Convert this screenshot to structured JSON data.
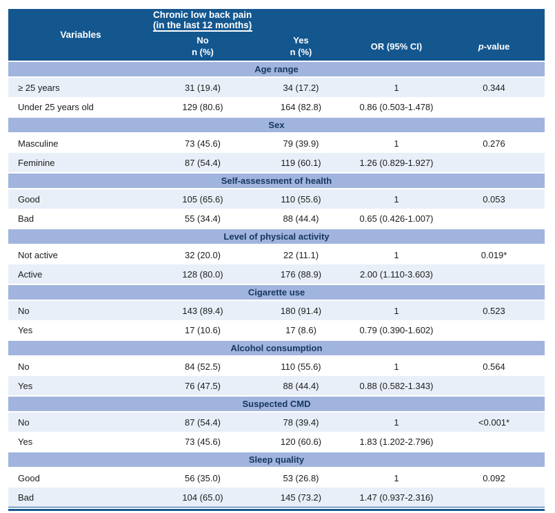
{
  "colors": {
    "header_bg": "#14578F",
    "band_bg": "#A0B4DE",
    "stripe_light": "#E9EFF9",
    "stripe_white": "#FFFFFF",
    "band_text": "#17365D",
    "header_text": "#FFFFFF",
    "body_text": "#1B1B1B"
  },
  "header": {
    "variables_label": "Variables",
    "span_label": "Chronic low back pain (in the last 12 months)",
    "col_no_line1": "No",
    "col_no_line2": "n (%)",
    "col_yes_line1": "Yes",
    "col_yes_line2": "n (%)",
    "col_or": "OR (95% CI)",
    "col_p_italic": "p",
    "col_p_rest": "-value"
  },
  "sections": [
    {
      "title": "Age range",
      "rows": [
        {
          "cells": [
            "≥ 25 years",
            "31 (19.4)",
            "34 (17.2)",
            "1",
            "0.344"
          ]
        },
        {
          "cells": [
            "Under 25 years old",
            "129 (80.6)",
            "164 (82.8)",
            "0.86 (0.503-1.478)",
            ""
          ]
        }
      ]
    },
    {
      "title": "Sex",
      "rows": [
        {
          "cells": [
            "Masculine",
            "73 (45.6)",
            "79 (39.9)",
            "1",
            "0.276"
          ]
        },
        {
          "cells": [
            "Feminine",
            "87 (54.4)",
            "119 (60.1)",
            "1.26 (0.829-1.927)",
            ""
          ]
        }
      ]
    },
    {
      "title": "Self-assessment of health",
      "rows": [
        {
          "cells": [
            "Good",
            "105 (65.6)",
            "110 (55.6)",
            "1",
            "0.053"
          ]
        },
        {
          "cells": [
            "Bad",
            "55 (34.4)",
            "88 (44.4)",
            "0.65 (0.426-1.007)",
            ""
          ]
        }
      ]
    },
    {
      "title": "Level of physical activity",
      "rows": [
        {
          "cells": [
            "Not active",
            "32 (20.0)",
            "22 (11.1)",
            "1",
            "0.019*"
          ]
        },
        {
          "cells": [
            "Active",
            "128 (80.0)",
            "176 (88.9)",
            "2.00 (1.110-3.603)",
            ""
          ]
        }
      ]
    },
    {
      "title": "Cigarette use",
      "rows": [
        {
          "cells": [
            "No",
            "143 (89.4)",
            "180 (91.4)",
            "1",
            "0.523"
          ]
        },
        {
          "cells": [
            "Yes",
            "17 (10.6)",
            "17 (8.6)",
            "0.79 (0.390-1.602)",
            ""
          ]
        }
      ]
    },
    {
      "title": "Alcohol consumption",
      "rows": [
        {
          "cells": [
            "No",
            "84 (52.5)",
            "110 (55.6)",
            "1",
            "0.564"
          ]
        },
        {
          "cells": [
            "Yes",
            "76 (47.5)",
            "88 (44.4)",
            "0.88 (0.582-1.343)",
            ""
          ]
        }
      ]
    },
    {
      "title": "Suspected CMD",
      "rows": [
        {
          "cells": [
            "No",
            "87 (54.4)",
            "78 (39.4)",
            "1",
            "<0.001*"
          ]
        },
        {
          "cells": [
            "Yes",
            "73 (45.6)",
            "120 (60.6)",
            "1.83 (1.202-2.796)",
            ""
          ]
        }
      ]
    },
    {
      "title": "Sleep quality",
      "rows": [
        {
          "cells": [
            "Good",
            "56 (35.0)",
            "53 (26.8)",
            "1",
            "0.092"
          ]
        },
        {
          "cells": [
            "Bad",
            "104 (65.0)",
            "145 (73.2)",
            "1.47 (0.937-2.316)",
            ""
          ]
        }
      ]
    }
  ]
}
